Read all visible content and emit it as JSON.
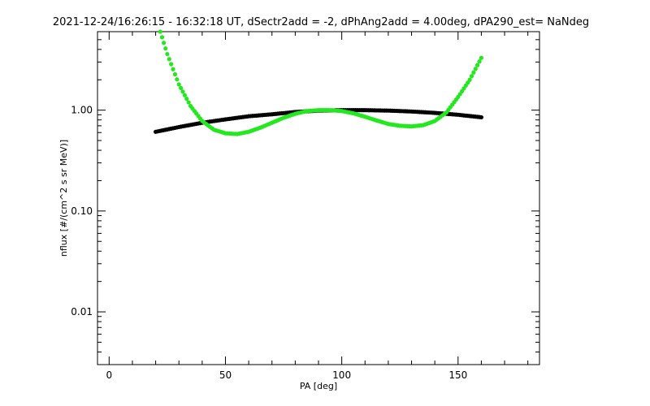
{
  "chart_data": {
    "type": "scatter",
    "title": "2021-12-24/16:26:15 - 16:32:18 UT, dSectr2add = -2, dPhAng2add = 4.00deg, dPA290_est=   NaNdeg",
    "xlabel": "PA [deg]",
    "ylabel": "nflux [#/(cm^2 s sr MeV)]",
    "xlim": [
      -5,
      185
    ],
    "ylim": [
      0.003,
      6
    ],
    "yscale": "log",
    "xticks": [
      0,
      50,
      100,
      150
    ],
    "xtick_labels": [
      "0",
      "50",
      "100",
      "150"
    ],
    "yticks": [
      0.01,
      0.1,
      1.0
    ],
    "ytick_labels": [
      "0.01",
      "0.10",
      "1.00"
    ],
    "grid": false,
    "legend": "none",
    "series": [
      {
        "color": "#000000",
        "x": [
          20,
          30,
          40,
          50,
          60,
          70,
          80,
          90,
          100,
          110,
          120,
          130,
          140,
          150,
          160
        ],
        "y": [
          0.61,
          0.68,
          0.75,
          0.81,
          0.87,
          0.91,
          0.96,
          0.99,
          1.0,
          1.0,
          0.99,
          0.97,
          0.94,
          0.9,
          0.85
        ]
      },
      {
        "color": "#22e81e",
        "x": [
          22,
          25,
          30,
          35,
          40,
          45,
          50,
          55,
          60,
          65,
          70,
          75,
          80,
          85,
          90,
          95,
          100,
          105,
          110,
          115,
          120,
          125,
          130,
          135,
          140,
          145,
          150,
          155,
          160
        ],
        "y": [
          6.0,
          3.6,
          1.8,
          1.1,
          0.78,
          0.64,
          0.59,
          0.58,
          0.61,
          0.67,
          0.75,
          0.84,
          0.92,
          0.98,
          1.0,
          1.0,
          0.98,
          0.93,
          0.86,
          0.79,
          0.73,
          0.7,
          0.69,
          0.71,
          0.78,
          0.95,
          1.35,
          2.0,
          3.3
        ]
      }
    ]
  }
}
